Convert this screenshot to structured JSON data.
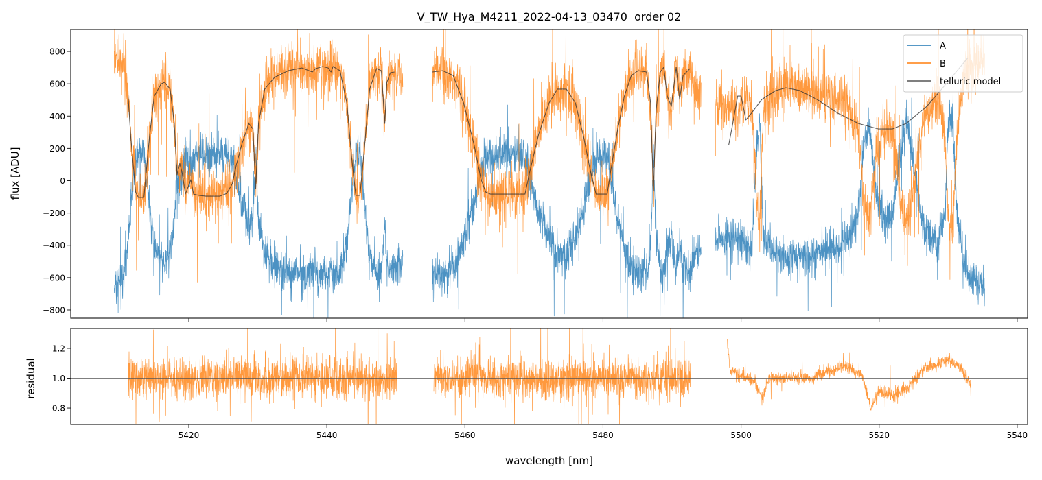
{
  "chart_data": {
    "type": "line",
    "title": "V_TW_Hya_M4211_2022-04-13_03470  order 02",
    "xlabel": "wavelength [nm]",
    "colors": {
      "A": "#1f77b4",
      "B": "#ff7f0e",
      "model": "#333333",
      "residual": "#ff7f0e",
      "refline": "#555555"
    },
    "legend": {
      "placement": "top-right",
      "entries": [
        "A",
        "B",
        "telluric model"
      ]
    },
    "xlim": [
      5402.9,
      5541.5
    ],
    "xticks": [
      5420,
      5440,
      5460,
      5480,
      5500,
      5520,
      5540
    ],
    "xtick_labels": [
      "5420",
      "5440",
      "5460",
      "5480",
      "5500",
      "5520",
      "5540"
    ],
    "top_panel": {
      "ylabel": "flux [ADU]",
      "ylim": [
        -851,
        936
      ],
      "yticks": [
        -800,
        -600,
        -400,
        -200,
        0,
        200,
        400,
        600,
        800
      ],
      "ytick_labels": [
        "−800",
        "−600",
        "−400",
        "−200",
        "0",
        "200",
        "400",
        "600",
        "800"
      ],
      "telluric_model_segments": [
        [
          [
            5411.2,
            533
          ],
          [
            5411.6,
            270
          ],
          [
            5412.3,
            -70
          ],
          [
            5412.7,
            -104
          ],
          [
            5413.5,
            -104
          ],
          [
            5414.3,
            270
          ],
          [
            5415.0,
            524
          ],
          [
            5416.0,
            600
          ],
          [
            5416.5,
            609
          ],
          [
            5417.3,
            567
          ],
          [
            5417.9,
            354
          ],
          [
            5418.3,
            36
          ],
          [
            5418.7,
            108
          ],
          [
            5419.1,
            36
          ],
          [
            5419.5,
            -83
          ],
          [
            5420.3,
            6
          ],
          [
            5420.7,
            -83
          ],
          [
            5421.5,
            -91
          ],
          [
            5422.5,
            -96
          ],
          [
            5424.5,
            -96
          ],
          [
            5425.5,
            -79
          ],
          [
            5426.3,
            -19
          ],
          [
            5426.9,
            100
          ],
          [
            5427.7,
            227
          ],
          [
            5428.7,
            354
          ],
          [
            5429.3,
            320
          ],
          [
            5429.7,
            -49
          ],
          [
            5430.1,
            354
          ],
          [
            5431.0,
            567
          ],
          [
            5432.4,
            639
          ],
          [
            5434.4,
            681
          ],
          [
            5436.4,
            698
          ],
          [
            5437.9,
            673
          ],
          [
            5438.4,
            694
          ],
          [
            5439.4,
            707
          ],
          [
            5440.2,
            698
          ],
          [
            5440.6,
            673
          ],
          [
            5440.9,
            707
          ],
          [
            5441.9,
            681
          ],
          [
            5442.9,
            482
          ],
          [
            5443.6,
            143
          ],
          [
            5444.2,
            -91
          ],
          [
            5444.8,
            -91
          ],
          [
            5445.4,
            185
          ],
          [
            5446.2,
            567
          ],
          [
            5447.2,
            694
          ],
          [
            5447.9,
            681
          ],
          [
            5448.4,
            354
          ],
          [
            5448.7,
            609
          ],
          [
            5449.2,
            668
          ],
          [
            5449.8,
            673
          ]
        ],
        [
          [
            5455.3,
            673
          ],
          [
            5456.8,
            681
          ],
          [
            5458.3,
            651
          ],
          [
            5459.8,
            482
          ],
          [
            5461.3,
            227
          ],
          [
            5462.3,
            15
          ],
          [
            5463.0,
            -70
          ],
          [
            5463.7,
            -83
          ],
          [
            5466.2,
            -83
          ],
          [
            5468.7,
            -83
          ],
          [
            5469.4,
            57
          ],
          [
            5470.7,
            291
          ],
          [
            5472.2,
            482
          ],
          [
            5473.4,
            567
          ],
          [
            5474.7,
            567
          ],
          [
            5476.0,
            482
          ],
          [
            5477.2,
            270
          ],
          [
            5478.2,
            57
          ],
          [
            5479.0,
            -83
          ],
          [
            5480.6,
            -83
          ],
          [
            5481.1,
            57
          ],
          [
            5482.1,
            312
          ],
          [
            5483.1,
            524
          ],
          [
            5484.1,
            651
          ],
          [
            5485.1,
            681
          ],
          [
            5486.3,
            673
          ],
          [
            5486.9,
            482
          ],
          [
            5487.3,
            -62
          ],
          [
            5487.7,
            439
          ],
          [
            5488.3,
            673
          ],
          [
            5488.8,
            702
          ],
          [
            5489.3,
            524
          ],
          [
            5489.9,
            460
          ],
          [
            5490.6,
            702
          ],
          [
            5491.1,
            503
          ],
          [
            5491.6,
            651
          ],
          [
            5492.6,
            694
          ]
        ],
        [
          [
            5498.2,
            219
          ],
          [
            5498.8,
            354
          ],
          [
            5499.5,
            524
          ],
          [
            5500.0,
            524
          ],
          [
            5500.7,
            376
          ],
          [
            5501.5,
            418
          ],
          [
            5503.0,
            503
          ],
          [
            5505.0,
            558
          ],
          [
            5506.5,
            575
          ],
          [
            5508.5,
            558
          ],
          [
            5511.0,
            503
          ],
          [
            5514.0,
            418
          ],
          [
            5517.0,
            354
          ],
          [
            5519.9,
            320
          ],
          [
            5521.9,
            320
          ],
          [
            5523.9,
            354
          ],
          [
            5526.9,
            460
          ],
          [
            5529.9,
            609
          ],
          [
            5532.8,
            758
          ]
        ]
      ],
      "B_segments": [
        {
          "range": [
            5409.2,
            5451.0
          ],
          "extra_points": [
            [
              5409.2,
              780
            ],
            [
              5410.5,
              700
            ],
            [
              5450.2,
              650
            ],
            [
              5451.0,
              640
            ]
          ],
          "noise": 110
        },
        {
          "range": [
            5455.3,
            5494.2
          ],
          "extra_points": [
            [
              5493.4,
              560
            ],
            [
              5494.2,
              540
            ]
          ],
          "noise": 110
        },
        {
          "range": [
            5496.3,
            5535.3
          ],
          "points": [
            [
              5496.3,
              480
            ],
            [
              5499.0,
              440
            ],
            [
              5501.5,
              520
            ],
            [
              5502.3,
              -150
            ],
            [
              5502.7,
              -300
            ],
            [
              5503.2,
              450
            ],
            [
              5506.0,
              600
            ],
            [
              5510.0,
              560
            ],
            [
              5515.0,
              500
            ],
            [
              5517.0,
              300
            ],
            [
              5517.8,
              -150
            ],
            [
              5518.6,
              -250
            ],
            [
              5519.6,
              150
            ],
            [
              5520.5,
              320
            ],
            [
              5522.0,
              300
            ],
            [
              5523.0,
              -100
            ],
            [
              5524.0,
              -300
            ],
            [
              5525.0,
              0
            ],
            [
              5526.5,
              400
            ],
            [
              5528.5,
              500
            ],
            [
              5529.5,
              300
            ],
            [
              5530.0,
              -250
            ],
            [
              5530.6,
              -350
            ],
            [
              5531.3,
              300
            ],
            [
              5532.5,
              700
            ],
            [
              5535.3,
              750
            ]
          ],
          "noise": 110
        }
      ],
      "A_relation": {
        "offset": 80,
        "scale": -0.95,
        "noise": 85
      }
    },
    "bottom_panel": {
      "ylabel": "residual",
      "ylim": [
        0.69,
        1.333
      ],
      "yticks": [
        0.8,
        1.0,
        1.2
      ],
      "ytick_labels": [
        "0.8",
        "1.0",
        "1.2"
      ],
      "reference_line": 1.0,
      "residual_segments": [
        {
          "points": [
            [
              5411.2,
              1.0
            ],
            [
              5450.2,
              1.0
            ]
          ],
          "noise": 0.1
        },
        {
          "points": [
            [
              5455.5,
              1.0
            ],
            [
              5492.7,
              1.0
            ]
          ],
          "noise": 0.095
        },
        {
          "points": [
            [
              5498.0,
              1.25
            ],
            [
              5498.4,
              1.06
            ],
            [
              5500.0,
              1.02
            ],
            [
              5502.0,
              0.98
            ],
            [
              5503.0,
              0.86
            ],
            [
              5504.0,
              1.0
            ],
            [
              5510.0,
              1.0
            ],
            [
              5515.0,
              1.08
            ],
            [
              5517.5,
              1.02
            ],
            [
              5518.8,
              0.8
            ],
            [
              5520.0,
              0.92
            ],
            [
              5522.0,
              0.88
            ],
            [
              5524.0,
              0.92
            ],
            [
              5526.0,
              1.05
            ],
            [
              5530.0,
              1.12
            ],
            [
              5532.0,
              1.06
            ],
            [
              5533.3,
              0.95
            ]
          ],
          "noise": 0.03
        }
      ]
    }
  }
}
